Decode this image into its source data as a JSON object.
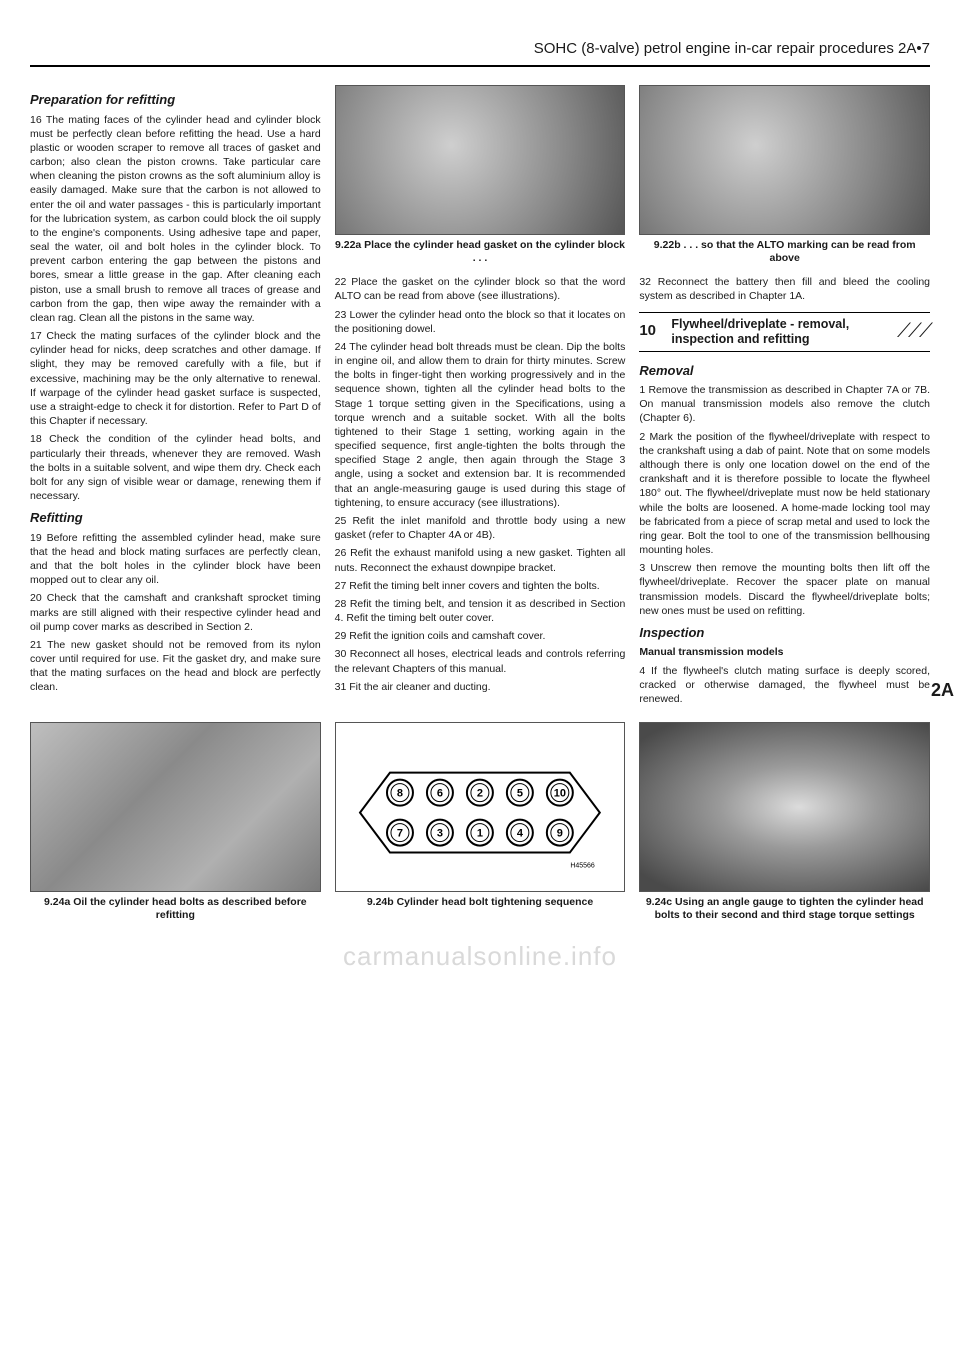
{
  "header": "SOHC (8-valve) petrol engine in-car repair procedures  2A•7",
  "side_tab": "2A",
  "watermark": "carmanualsonline.info",
  "col1": {
    "h_prep": "Preparation for refitting",
    "p16": "16 The mating faces of the cylinder head and cylinder block must be perfectly clean before refitting the head. Use a hard plastic or wooden scraper to remove all traces of gasket and carbon; also clean the piston crowns. Take particular care when cleaning the piston crowns as the soft aluminium alloy is easily damaged. Make sure that the carbon is not allowed to enter the oil and water passages - this is particularly important for the lubrication system, as carbon could block the oil supply to the engine's components. Using adhesive tape and paper, seal the water, oil and bolt holes in the cylinder block. To prevent carbon entering the gap between the pistons and bores, smear a little grease in the gap. After cleaning each piston, use a small brush to remove all traces of grease and carbon from the gap, then wipe away the remainder with a clean rag. Clean all the pistons in the same way.",
    "p17": "17 Check the mating surfaces of the cylinder block and the cylinder head for nicks, deep scratches and other damage. If slight, they may be removed carefully with a file, but if excessive, machining may be the only alternative to renewal. If warpage of the cylinder head gasket surface is suspected, use a straight-edge to check it for distortion. Refer to Part D of this Chapter if necessary.",
    "p18": "18 Check the condition of the cylinder head bolts, and particularly their threads, whenever they are removed. Wash the bolts in a suitable solvent, and wipe them dry. Check each bolt for any sign of visible wear or damage, renewing them if necessary.",
    "h_refit": "Refitting",
    "p19": "19 Before refitting the assembled cylinder head, make sure that the head and block mating surfaces are perfectly clean, and that the bolt holes in the cylinder block have been mopped out to clear any oil.",
    "p20": "20 Check that the camshaft and crankshaft sprocket timing marks are still aligned with their respective cylinder head and oil pump cover marks as described in Section 2.",
    "p21": "21 The new gasket should not be removed from its nylon cover until required for use. Fit the gasket dry, and make sure that the mating surfaces on the head and block are perfectly clean."
  },
  "col2": {
    "cap22a": "9.22a  Place the cylinder head gasket on the cylinder block . . .",
    "p22": "22 Place the gasket on the cylinder block so that the word ALTO can be read from above (see illustrations).",
    "p23": "23 Lower the cylinder head onto the block so that it locates on the positioning dowel.",
    "p24": "24 The cylinder head bolt threads must be clean. Dip the bolts in engine oil, and allow them to drain for thirty minutes. Screw the bolts in finger-tight then working progressively and in the sequence shown, tighten all the cylinder head bolts to the Stage 1 torque setting given in the Specifications, using a torque wrench and a suitable socket. With all the bolts tightened to their Stage 1 setting, working again in the specified sequence, first angle-tighten the bolts through the specified Stage 2 angle, then again through the Stage 3 angle, using a socket and extension bar. It is recommended that an angle-measuring gauge is used during this stage of tightening, to ensure accuracy (see illustrations).",
    "p25": "25 Refit the inlet manifold and throttle body using a new gasket (refer to Chapter 4A or 4B).",
    "p26": "26 Refit the exhaust manifold using a new gasket. Tighten all nuts. Reconnect the exhaust downpipe bracket.",
    "p27": "27 Refit the timing belt inner covers and tighten the bolts.",
    "p28": "28 Refit the timing belt, and tension it as described in Section 4. Refit the timing belt outer cover.",
    "p29": "29 Refit the ignition coils and camshaft cover.",
    "p30": "30 Reconnect all hoses, electrical leads and controls referring the relevant Chapters of this manual.",
    "p31": "31 Fit the air cleaner and ducting."
  },
  "col3": {
    "cap22b": "9.22b  . . . so that the ALTO marking can be read from above",
    "p32": "32 Reconnect the battery then fill and bleed the cooling system as described in Chapter 1A.",
    "section_num": "10",
    "section_title": "Flywheel/driveplate - removal, inspection and refitting",
    "h_removal": "Removal",
    "r1": "1 Remove the transmission as described in Chapter 7A or 7B. On manual transmission models also remove the clutch (Chapter 6).",
    "r2": "2 Mark the position of the flywheel/driveplate with respect to the crankshaft using a dab of paint. Note that on some models although there is only one location dowel on the end of the crankshaft and it is therefore possible to locate the flywheel 180° out. The flywheel/driveplate must now be held stationary while the bolts are loosened. A home-made locking tool may be fabricated from a piece of scrap metal and used to lock the ring gear. Bolt the tool to one of the transmission bellhousing mounting holes.",
    "r3": "3 Unscrew then remove the mounting bolts then lift off the flywheel/driveplate. Recover the spacer plate on manual transmission models. Discard the flywheel/driveplate bolts; new ones must be used on refitting.",
    "h_inspection": "Inspection",
    "h_manual": "Manual transmission models",
    "i4": "4 If the flywheel's clutch mating surface is deeply scored, cracked or otherwise damaged, the flywheel must be renewed."
  },
  "bottom": {
    "cap24a": "9.24a  Oil the cylinder head bolts as described before refitting",
    "cap24b": "9.24b  Cylinder head bolt tightening sequence",
    "cap24c": "9.24c  Using an angle gauge to tighten the cylinder head bolts to their second and third stage torque settings"
  },
  "bolt_sequence": {
    "top_row": [
      "8",
      "6",
      "2",
      "5",
      "10"
    ],
    "bottom_row": [
      "7",
      "3",
      "1",
      "4",
      "9"
    ],
    "ref": "H45566"
  }
}
